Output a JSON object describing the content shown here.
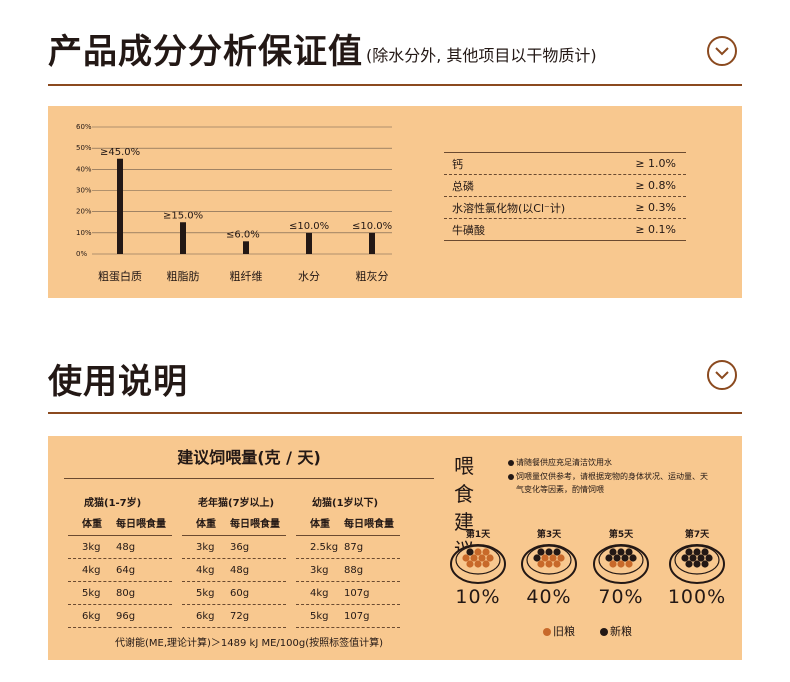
{
  "section1": {
    "title": "产品成分分析保证值",
    "subtitle": "(除水分外, 其他项目以干物质计)"
  },
  "chart_data": {
    "type": "bar",
    "categories": [
      "粗蛋白质",
      "粗脂肪",
      "粗纤维",
      "水分",
      "粗灰分"
    ],
    "values": [
      45.0,
      15.0,
      6.0,
      10.0,
      10.0
    ],
    "value_labels": [
      "≥45.0%",
      "≥15.0%",
      "≤6.0%",
      "≤10.0%",
      "≤10.0%"
    ],
    "ylim": [
      0,
      60
    ],
    "yticks": [
      "0%",
      "10%",
      "20%",
      "30%",
      "40%",
      "50%",
      "60%"
    ],
    "grid": "horizontal"
  },
  "minerals": [
    {
      "name": "钙",
      "value": "≥ 1.0%"
    },
    {
      "name": "总磷",
      "value": "≥ 0.8%"
    },
    {
      "name": "水溶性氯化物(以Cl⁻计)",
      "value": "≥ 0.3%"
    },
    {
      "name": "牛磺酸",
      "value": "≥ 0.1%"
    }
  ],
  "section2": {
    "title": "使用说明"
  },
  "feeding": {
    "title": "建议饲喂量(克 / 天)",
    "col_weight": "体重",
    "col_amount": "每日喂食量",
    "groups": [
      {
        "name": "成猫(1-7岁)",
        "rows": [
          [
            "3kg",
            "48g"
          ],
          [
            "4kg",
            "64g"
          ],
          [
            "5kg",
            "80g"
          ],
          [
            "6kg",
            "96g"
          ]
        ]
      },
      {
        "name": "老年猫(7岁以上)",
        "rows": [
          [
            "3kg",
            "36g"
          ],
          [
            "4kg",
            "48g"
          ],
          [
            "5kg",
            "60g"
          ],
          [
            "6kg",
            "72g"
          ]
        ]
      },
      {
        "name": "幼猫(1岁以下)",
        "rows": [
          [
            "2.5kg",
            "87g"
          ],
          [
            "3kg",
            "88g"
          ],
          [
            "4kg",
            "107g"
          ],
          [
            "5kg",
            "107g"
          ]
        ]
      }
    ],
    "note": "代谢能(ME,理论计算)＞1489 kJ ME/100g(按照标签值计算)"
  },
  "advice": {
    "title": "喂食建议",
    "note1": "请随餐供应充足清洁饮用水",
    "note2a": "饲喂量仅供参考，请根据宠物的身体状况、运动量、天",
    "note2b": "气变化等因素，酌情饲喂",
    "days": [
      {
        "label": "第1天",
        "pct": "10%",
        "new_fraction": 0.1
      },
      {
        "label": "第3天",
        "pct": "40%",
        "new_fraction": 0.4
      },
      {
        "label": "第5天",
        "pct": "70%",
        "new_fraction": 0.7
      },
      {
        "label": "第7天",
        "pct": "100%",
        "new_fraction": 1.0
      }
    ],
    "legend_old": "旧粮",
    "legend_new": "新粮",
    "color_old": "#c8692a",
    "color_new": "#231815"
  },
  "colors": {
    "accent": "#8b4a1f",
    "panel": "#f8c88f",
    "bar": "#231815"
  }
}
